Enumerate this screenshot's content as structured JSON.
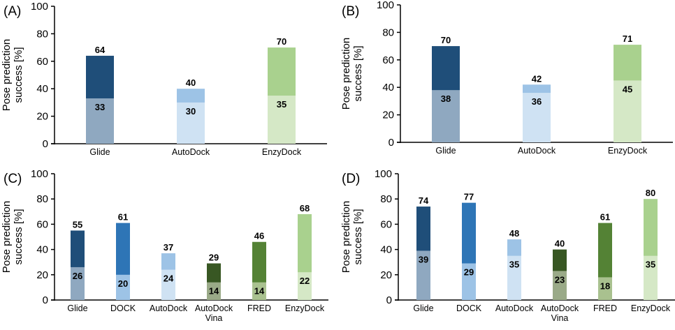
{
  "chart_data": [
    {
      "type": "bar",
      "stacked": "overlay",
      "panel_label": "(A)",
      "ylabel": "Pose prediction success [%]",
      "ylabel_lines": [
        "Pose prediction",
        "success [%]"
      ],
      "xlabel": "",
      "ylim": [
        0,
        100
      ],
      "yticks": [
        0,
        20,
        40,
        60,
        80,
        100
      ],
      "grid": false,
      "categories": [
        [
          "Glide"
        ],
        [
          "AutoDock"
        ],
        [
          "EnzyDock"
        ]
      ],
      "series": [
        {
          "name": "top",
          "values": [
            64,
            40,
            70
          ]
        },
        {
          "name": "bottom",
          "values": [
            33,
            30,
            35
          ]
        }
      ],
      "colors": [
        {
          "top": "#1F4E79",
          "bottom": "#8FA8C0"
        },
        {
          "top": "#9DC3E6",
          "bottom": "#CFE2F3"
        },
        {
          "top": "#A9D18E",
          "bottom": "#D5E8C6"
        }
      ]
    },
    {
      "type": "bar",
      "stacked": "overlay",
      "panel_label": "(B)",
      "ylabel": "Pose prediction success [%]",
      "ylabel_lines": [
        "Pose prediction",
        "success [%]"
      ],
      "xlabel": "",
      "ylim": [
        0,
        100
      ],
      "yticks": [
        0,
        20,
        40,
        60,
        80,
        100
      ],
      "grid": false,
      "categories": [
        [
          "Glide"
        ],
        [
          "AutoDock"
        ],
        [
          "EnzyDock"
        ]
      ],
      "series": [
        {
          "name": "top",
          "values": [
            70,
            42,
            71
          ]
        },
        {
          "name": "bottom",
          "values": [
            38,
            36,
            45
          ]
        }
      ],
      "colors": [
        {
          "top": "#1F4E79",
          "bottom": "#8FA8C0"
        },
        {
          "top": "#9DC3E6",
          "bottom": "#CFE2F3"
        },
        {
          "top": "#A9D18E",
          "bottom": "#D5E8C6"
        }
      ]
    },
    {
      "type": "bar",
      "stacked": "overlay",
      "panel_label": "(C)",
      "ylabel": "Pose prediction success [%]",
      "ylabel_lines": [
        "Pose prediction",
        "success [%]"
      ],
      "xlabel": "",
      "ylim": [
        0,
        100
      ],
      "yticks": [
        0,
        20,
        40,
        60,
        80,
        100
      ],
      "grid": false,
      "categories": [
        [
          "Glide"
        ],
        [
          "DOCK"
        ],
        [
          "AutoDock"
        ],
        [
          "AutoDock",
          "Vina"
        ],
        [
          "FRED"
        ],
        [
          "EnzyDock"
        ]
      ],
      "series": [
        {
          "name": "top",
          "values": [
            55,
            61,
            37,
            29,
            46,
            68
          ]
        },
        {
          "name": "bottom",
          "values": [
            26,
            20,
            24,
            14,
            14,
            22
          ]
        }
      ],
      "colors": [
        {
          "top": "#1F4E79",
          "bottom": "#8FA8C0"
        },
        {
          "top": "#2E75B6",
          "bottom": "#9DC3E6"
        },
        {
          "top": "#9DC3E6",
          "bottom": "#CFE2F3"
        },
        {
          "top": "#385723",
          "bottom": "#9AAA88"
        },
        {
          "top": "#548235",
          "bottom": "#A9C18F"
        },
        {
          "top": "#A9D18E",
          "bottom": "#D5E8C6"
        }
      ]
    },
    {
      "type": "bar",
      "stacked": "overlay",
      "panel_label": "(D)",
      "ylabel": "Pose prediction success [%]",
      "ylabel_lines": [
        "Pose prediction",
        "success [%]"
      ],
      "xlabel": "",
      "ylim": [
        0,
        100
      ],
      "yticks": [
        0,
        20,
        40,
        60,
        80,
        100
      ],
      "grid": false,
      "categories": [
        [
          "Glide"
        ],
        [
          "DOCK"
        ],
        [
          "AutoDock"
        ],
        [
          "AutoDock",
          "Vina"
        ],
        [
          "FRED"
        ],
        [
          "EnzyDock"
        ]
      ],
      "series": [
        {
          "name": "top",
          "values": [
            74,
            77,
            48,
            40,
            61,
            80
          ]
        },
        {
          "name": "bottom",
          "values": [
            39,
            29,
            35,
            23,
            18,
            35
          ]
        }
      ],
      "colors": [
        {
          "top": "#1F4E79",
          "bottom": "#8FA8C0"
        },
        {
          "top": "#2E75B6",
          "bottom": "#9DC3E6"
        },
        {
          "top": "#9DC3E6",
          "bottom": "#CFE2F3"
        },
        {
          "top": "#385723",
          "bottom": "#9AAA88"
        },
        {
          "top": "#548235",
          "bottom": "#A9C18F"
        },
        {
          "top": "#A9D18E",
          "bottom": "#D5E8C6"
        }
      ]
    }
  ]
}
